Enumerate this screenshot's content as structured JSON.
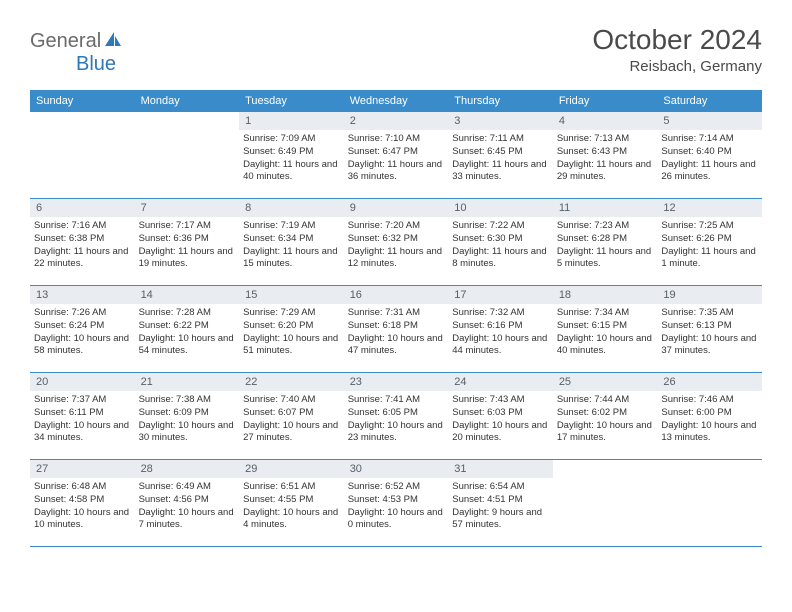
{
  "brand": {
    "part1": "General",
    "part2": "Blue",
    "logo_color": "#2e77b8",
    "text1_color": "#6a6a6a"
  },
  "title": "October 2024",
  "location": "Reisbach, Germany",
  "colors": {
    "header_bg": "#3a8bc9",
    "header_text": "#ffffff",
    "daynum_bg": "#e9edf1",
    "daynum_text": "#55606a",
    "body_text": "#333333",
    "rule": "#3a8bc9"
  },
  "day_headers": [
    "Sunday",
    "Monday",
    "Tuesday",
    "Wednesday",
    "Thursday",
    "Friday",
    "Saturday"
  ],
  "weeks": [
    [
      null,
      null,
      {
        "n": "1",
        "sr": "7:09 AM",
        "ss": "6:49 PM",
        "dl": "11 hours and 40 minutes."
      },
      {
        "n": "2",
        "sr": "7:10 AM",
        "ss": "6:47 PM",
        "dl": "11 hours and 36 minutes."
      },
      {
        "n": "3",
        "sr": "7:11 AM",
        "ss": "6:45 PM",
        "dl": "11 hours and 33 minutes."
      },
      {
        "n": "4",
        "sr": "7:13 AM",
        "ss": "6:43 PM",
        "dl": "11 hours and 29 minutes."
      },
      {
        "n": "5",
        "sr": "7:14 AM",
        "ss": "6:40 PM",
        "dl": "11 hours and 26 minutes."
      }
    ],
    [
      {
        "n": "6",
        "sr": "7:16 AM",
        "ss": "6:38 PM",
        "dl": "11 hours and 22 minutes."
      },
      {
        "n": "7",
        "sr": "7:17 AM",
        "ss": "6:36 PM",
        "dl": "11 hours and 19 minutes."
      },
      {
        "n": "8",
        "sr": "7:19 AM",
        "ss": "6:34 PM",
        "dl": "11 hours and 15 minutes."
      },
      {
        "n": "9",
        "sr": "7:20 AM",
        "ss": "6:32 PM",
        "dl": "11 hours and 12 minutes."
      },
      {
        "n": "10",
        "sr": "7:22 AM",
        "ss": "6:30 PM",
        "dl": "11 hours and 8 minutes."
      },
      {
        "n": "11",
        "sr": "7:23 AM",
        "ss": "6:28 PM",
        "dl": "11 hours and 5 minutes."
      },
      {
        "n": "12",
        "sr": "7:25 AM",
        "ss": "6:26 PM",
        "dl": "11 hours and 1 minute."
      }
    ],
    [
      {
        "n": "13",
        "sr": "7:26 AM",
        "ss": "6:24 PM",
        "dl": "10 hours and 58 minutes."
      },
      {
        "n": "14",
        "sr": "7:28 AM",
        "ss": "6:22 PM",
        "dl": "10 hours and 54 minutes."
      },
      {
        "n": "15",
        "sr": "7:29 AM",
        "ss": "6:20 PM",
        "dl": "10 hours and 51 minutes."
      },
      {
        "n": "16",
        "sr": "7:31 AM",
        "ss": "6:18 PM",
        "dl": "10 hours and 47 minutes."
      },
      {
        "n": "17",
        "sr": "7:32 AM",
        "ss": "6:16 PM",
        "dl": "10 hours and 44 minutes."
      },
      {
        "n": "18",
        "sr": "7:34 AM",
        "ss": "6:15 PM",
        "dl": "10 hours and 40 minutes."
      },
      {
        "n": "19",
        "sr": "7:35 AM",
        "ss": "6:13 PM",
        "dl": "10 hours and 37 minutes."
      }
    ],
    [
      {
        "n": "20",
        "sr": "7:37 AM",
        "ss": "6:11 PM",
        "dl": "10 hours and 34 minutes."
      },
      {
        "n": "21",
        "sr": "7:38 AM",
        "ss": "6:09 PM",
        "dl": "10 hours and 30 minutes."
      },
      {
        "n": "22",
        "sr": "7:40 AM",
        "ss": "6:07 PM",
        "dl": "10 hours and 27 minutes."
      },
      {
        "n": "23",
        "sr": "7:41 AM",
        "ss": "6:05 PM",
        "dl": "10 hours and 23 minutes."
      },
      {
        "n": "24",
        "sr": "7:43 AM",
        "ss": "6:03 PM",
        "dl": "10 hours and 20 minutes."
      },
      {
        "n": "25",
        "sr": "7:44 AM",
        "ss": "6:02 PM",
        "dl": "10 hours and 17 minutes."
      },
      {
        "n": "26",
        "sr": "7:46 AM",
        "ss": "6:00 PM",
        "dl": "10 hours and 13 minutes."
      }
    ],
    [
      {
        "n": "27",
        "sr": "6:48 AM",
        "ss": "4:58 PM",
        "dl": "10 hours and 10 minutes."
      },
      {
        "n": "28",
        "sr": "6:49 AM",
        "ss": "4:56 PM",
        "dl": "10 hours and 7 minutes."
      },
      {
        "n": "29",
        "sr": "6:51 AM",
        "ss": "4:55 PM",
        "dl": "10 hours and 4 minutes."
      },
      {
        "n": "30",
        "sr": "6:52 AM",
        "ss": "4:53 PM",
        "dl": "10 hours and 0 minutes."
      },
      {
        "n": "31",
        "sr": "6:54 AM",
        "ss": "4:51 PM",
        "dl": "9 hours and 57 minutes."
      },
      null,
      null
    ]
  ],
  "labels": {
    "sunrise": "Sunrise: ",
    "sunset": "Sunset: ",
    "daylight": "Daylight: "
  }
}
